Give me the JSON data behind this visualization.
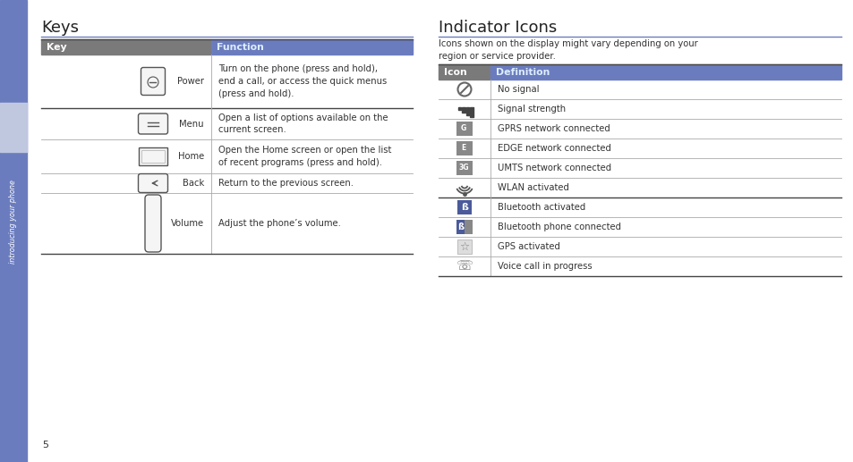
{
  "page_bg": "#ffffff",
  "sidebar_color": "#6b7cbe",
  "sidebar_light": "#c0c8e0",
  "sidebar_text": "introducing your phone",
  "sidebar_text_color": "#ffffff",
  "page_number": "5",
  "left_title": "Keys",
  "right_title": "Indicator Icons",
  "right_subtitle": "Icons shown on the display might vary depending on your\nregion or service provider.",
  "header_blue_bg": "#6b7cbe",
  "header_gray_bg": "#7a7a7a",
  "keys_header": [
    "Key",
    "Function"
  ],
  "keys_rows": [
    [
      "Power",
      "Turn on the phone (press and hold),\nend a call, or access the quick menus\n(press and hold)."
    ],
    [
      "Menu",
      "Open a list of options available on the\ncurrent screen."
    ],
    [
      "Home",
      "Open the Home screen or open the list\nof recent programs (press and hold)."
    ],
    [
      "Back",
      "Return to the previous screen."
    ],
    [
      "Volume",
      "Adjust the phone’s volume."
    ]
  ],
  "icons_header": [
    "Icon",
    "Definition"
  ],
  "icons_rows": [
    "No signal",
    "Signal strength",
    "GPRS network connected",
    "EDGE network connected",
    "UMTS network connected",
    "WLAN activated",
    "Bluetooth activated",
    "Bluetooth phone connected",
    "GPS activated",
    "Voice call in progress"
  ],
  "title_fontsize": 13,
  "body_fontsize": 7.2,
  "header_fontsize": 7.8,
  "row_line_color": "#aaaaaa",
  "thick_line_color": "#444444",
  "blue_line_color": "#6b7cbe"
}
